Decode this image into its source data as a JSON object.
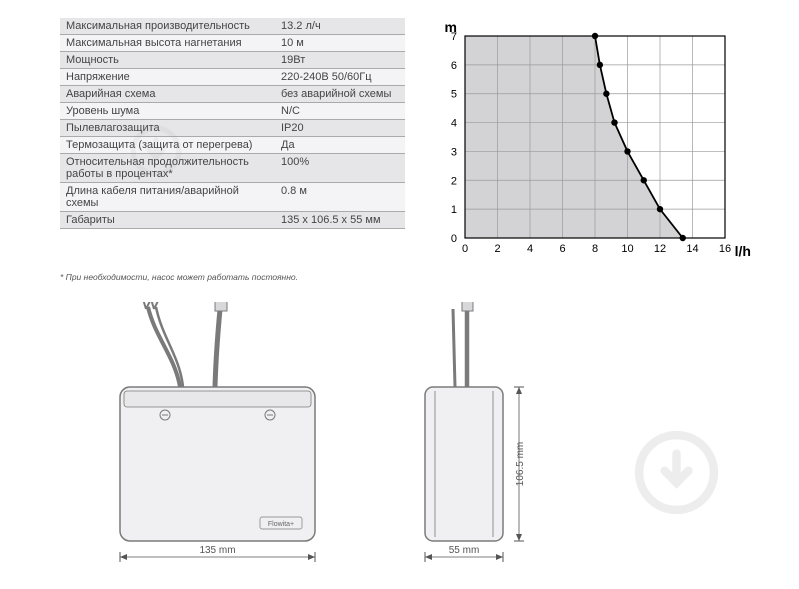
{
  "spec_table": {
    "rows": [
      {
        "label": "Максимальная производительность",
        "value": "13.2 л/ч"
      },
      {
        "label": "Максимальная высота нагнетания",
        "value": "10 м"
      },
      {
        "label": "Мощность",
        "value": "19Вт"
      },
      {
        "label": "Напряжение",
        "value": "220-240В  50/60Гц"
      },
      {
        "label": "Аварийная схема",
        "value": "без аварийной схемы"
      },
      {
        "label": "Уровень шума",
        "value": "N/C"
      },
      {
        "label": "Пылевлагозащита",
        "value": "IP20"
      },
      {
        "label": "Термозащита (защита от перегрева)",
        "value": "Да"
      },
      {
        "label": "Относительная продолжительность работы в процентах*",
        "value": "100%"
      },
      {
        "label": "Длина кабеля питания/аварийной схемы",
        "value": "0.8 м"
      },
      {
        "label": "Габариты",
        "value": "135 x 106.5 x 55 мм"
      }
    ]
  },
  "footnote": "* При необходимости, насос может работать постоянно.",
  "chart": {
    "type": "line",
    "y_label": "m",
    "x_label": "l/h",
    "xlim": [
      0,
      16
    ],
    "ylim": [
      0,
      7
    ],
    "x_ticks": [
      0,
      2,
      4,
      6,
      8,
      10,
      12,
      14,
      16
    ],
    "y_ticks": [
      0,
      1,
      2,
      3,
      4,
      5,
      6,
      7
    ],
    "grid_color": "#9a9a9a",
    "fill_color": "#d3d3d5",
    "line_color": "#000000",
    "marker_color": "#000000",
    "axis_fontsize": 11,
    "label_fontsize": 14,
    "label_fontweight": "bold",
    "points": [
      {
        "x": 8,
        "y": 7
      },
      {
        "x": 8.3,
        "y": 6
      },
      {
        "x": 8.7,
        "y": 5
      },
      {
        "x": 9.2,
        "y": 4
      },
      {
        "x": 10.0,
        "y": 3
      },
      {
        "x": 11.0,
        "y": 2
      },
      {
        "x": 12.0,
        "y": 1
      },
      {
        "x": 13.4,
        "y": 0
      }
    ]
  },
  "drawings": {
    "front": {
      "width_label": "135 mm",
      "brand_label": "Flowita+",
      "body_color": "#f0f0f2",
      "stroke": "#7a7a7a"
    },
    "side": {
      "width_label": "55 mm",
      "height_label": "106.5 mm",
      "body_color": "#f0f0f2",
      "stroke": "#7a7a7a"
    }
  },
  "colors": {
    "grid": "#9a9a9a",
    "light_row": "#f4f4f6",
    "dark_row": "#e6e6e8",
    "text": "#444444"
  }
}
